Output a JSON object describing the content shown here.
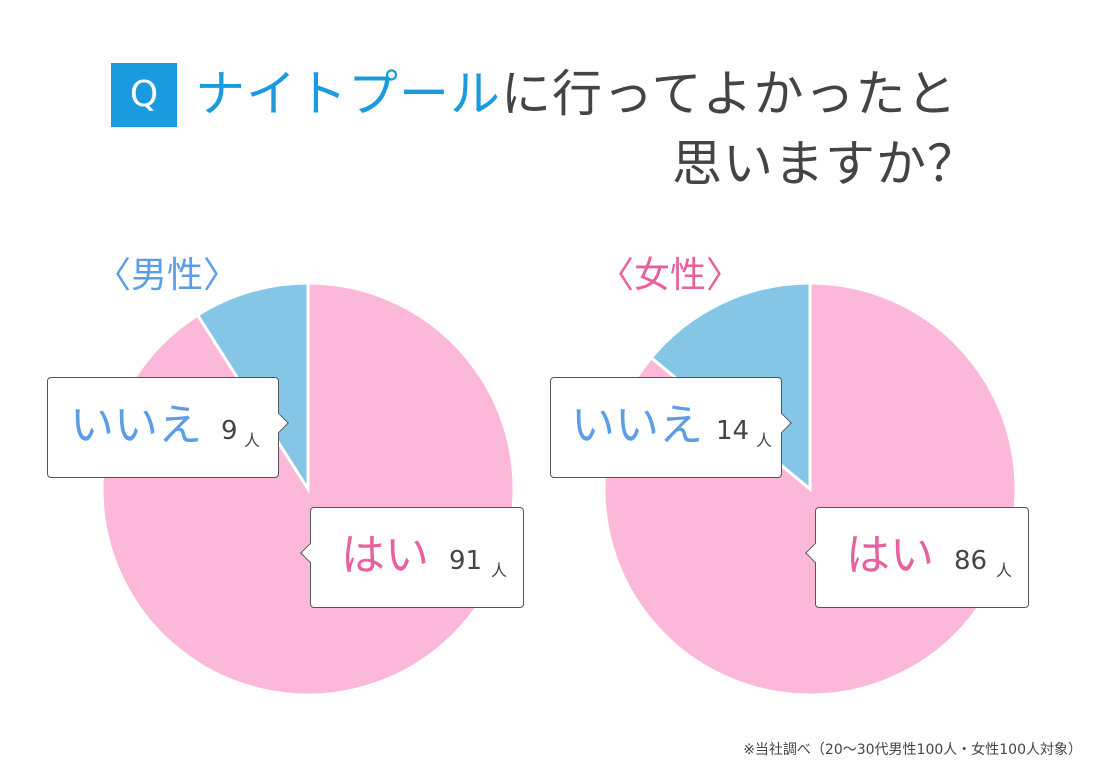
{
  "title": {
    "badge": "Q",
    "line1_highlight": "ナイトプール",
    "line1_rest": "に行ってよかったと",
    "line2": "思いますか？"
  },
  "colors": {
    "accent": "#1a9be0",
    "yes": "#fbb8d8",
    "no": "#85c5e6",
    "male_label": "#5b9ee6",
    "female_label": "#e8609e",
    "text": "#444444"
  },
  "chart_data": [
    {
      "type": "pie",
      "title": "〈男性〉",
      "unit": "人",
      "slices": [
        {
          "label": "はい",
          "value": 91
        },
        {
          "label": "いいえ",
          "value": 9
        }
      ]
    },
    {
      "type": "pie",
      "title": "〈女性〉",
      "unit": "人",
      "slices": [
        {
          "label": "はい",
          "value": 86
        },
        {
          "label": "いいえ",
          "value": 14
        }
      ]
    }
  ],
  "footnote": "※当社調べ（20〜30代男性100人・女性100人対象）"
}
